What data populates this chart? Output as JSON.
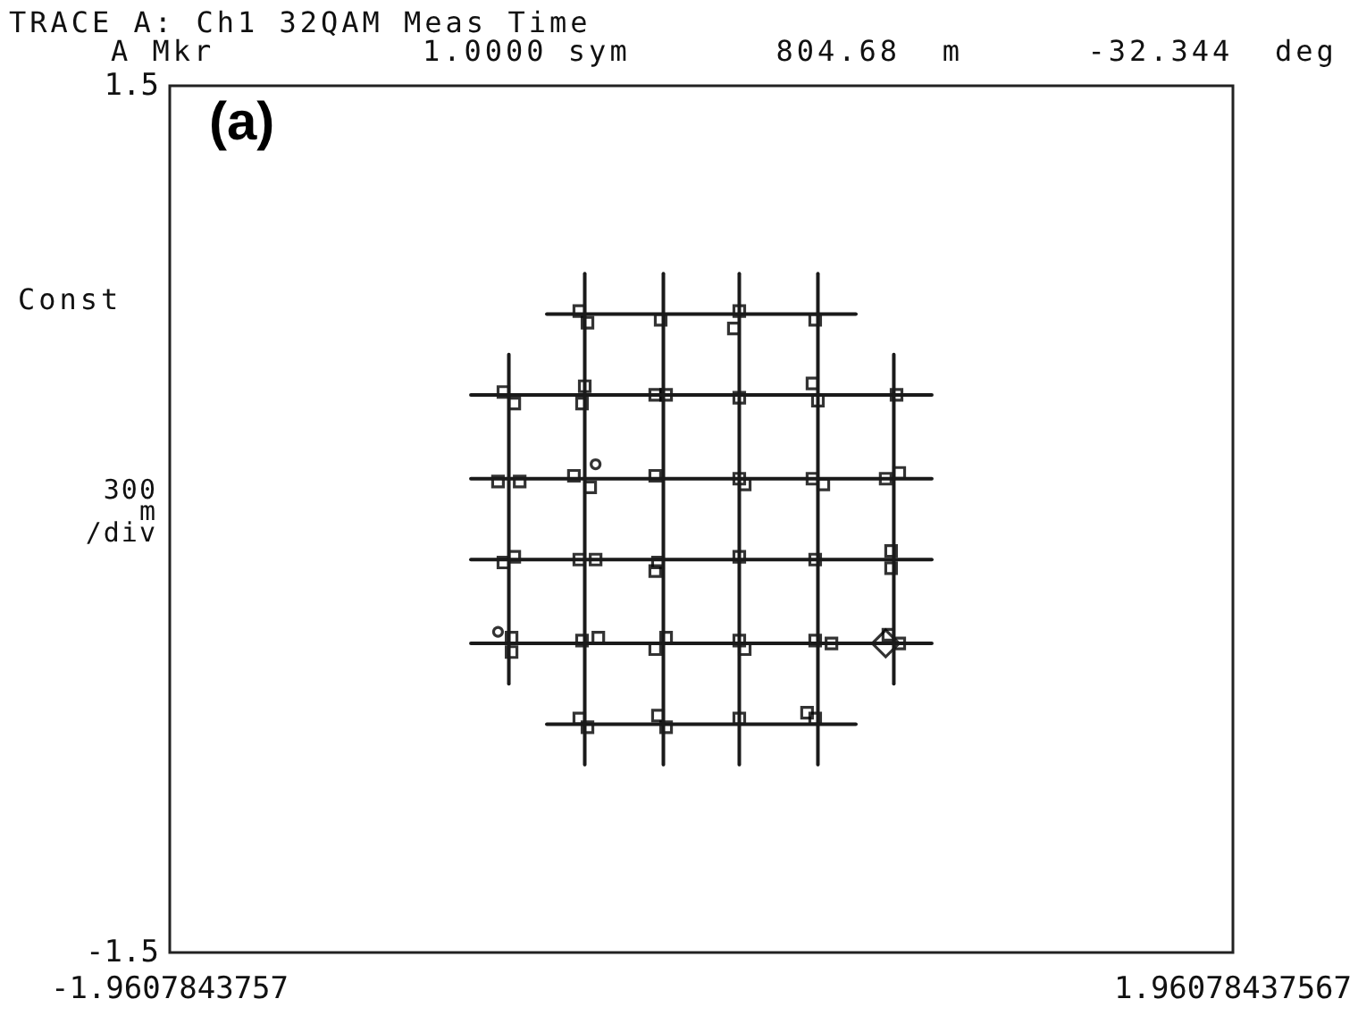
{
  "chart_data": {
    "type": "scatter",
    "title": "TRACE A: Ch1 32QAM Meas Time",
    "subtitle": "A Mkr          1.0000 sym       804.68  m      -32.344  deg",
    "ylabel": "Const",
    "annotations": [
      "(a)",
      "300 m /div"
    ],
    "xlim": [
      -1.9607843757,
      1.96078437567
    ],
    "xticks": [
      -1.9607843757,
      1.96078437567
    ],
    "ylim": [
      -1.5,
      1.5
    ],
    "yticks": [
      -1.5,
      1.5
    ],
    "series": [
      {
        "type": "line",
        "color": "#1a1a1a",
        "x": [
          -0.57,
          0.57
        ],
        "values": [
          0.71,
          0.71
        ]
      },
      {
        "type": "line",
        "color": "#1a1a1a",
        "x": [
          -0.85,
          0.85
        ],
        "values": [
          0.43,
          0.43
        ]
      },
      {
        "type": "line",
        "color": "#1a1a1a",
        "x": [
          -0.85,
          0.85
        ],
        "values": [
          0.14,
          0.14
        ]
      },
      {
        "type": "line",
        "color": "#1a1a1a",
        "x": [
          -0.85,
          0.85
        ],
        "values": [
          -0.14,
          -0.14
        ]
      },
      {
        "type": "line",
        "color": "#1a1a1a",
        "x": [
          -0.85,
          0.85
        ],
        "values": [
          -0.43,
          -0.43
        ]
      },
      {
        "type": "line",
        "color": "#1a1a1a",
        "x": [
          -0.57,
          0.57
        ],
        "values": [
          -0.71,
          -0.71
        ]
      },
      {
        "type": "line",
        "color": "#1a1a1a",
        "x": [
          -0.71,
          -0.71
        ],
        "values": [
          -0.57,
          0.57
        ]
      },
      {
        "type": "line",
        "color": "#1a1a1a",
        "x": [
          -0.43,
          -0.43
        ],
        "values": [
          -0.85,
          0.85
        ]
      },
      {
        "type": "line",
        "color": "#1a1a1a",
        "x": [
          -0.14,
          -0.14
        ],
        "values": [
          -0.85,
          0.85
        ]
      },
      {
        "type": "line",
        "color": "#1a1a1a",
        "x": [
          0.14,
          0.14
        ],
        "values": [
          -0.85,
          0.85
        ]
      },
      {
        "type": "line",
        "color": "#1a1a1a",
        "x": [
          0.43,
          0.43
        ],
        "values": [
          -0.85,
          0.85
        ]
      },
      {
        "type": "line",
        "color": "#1a1a1a",
        "x": [
          0.71,
          0.71
        ],
        "values": [
          -0.57,
          0.57
        ]
      },
      {
        "marker": "square",
        "color": "#000000",
        "x": [
          -0.45,
          -0.42,
          -0.15,
          0.14,
          0.12,
          0.42,
          -0.73,
          -0.69,
          -0.43,
          -0.44,
          -0.17,
          -0.13,
          0.14,
          0.41,
          0.43,
          0.72,
          -0.75,
          -0.67,
          -0.47,
          -0.41,
          -0.17,
          0.14,
          0.16,
          0.41,
          0.45,
          0.68,
          0.73,
          -0.73,
          -0.69,
          -0.45,
          -0.39,
          -0.16,
          -0.17,
          0.14,
          0.42,
          0.7,
          0.7,
          -0.7,
          -0.7,
          -0.44,
          -0.38,
          -0.17,
          -0.13,
          0.14,
          0.16,
          0.42,
          0.48,
          0.69,
          0.73,
          -0.45,
          -0.42,
          -0.16,
          -0.13,
          0.14,
          0.42,
          0.39
        ],
        "values": [
          0.72,
          0.68,
          0.69,
          0.72,
          0.66,
          0.69,
          0.44,
          0.4,
          0.46,
          0.4,
          0.43,
          0.43,
          0.42,
          0.47,
          0.41,
          0.43,
          0.13,
          0.13,
          0.15,
          0.11,
          0.15,
          0.14,
          0.12,
          0.14,
          0.12,
          0.14,
          0.16,
          -0.15,
          -0.13,
          -0.14,
          -0.14,
          -0.15,
          -0.18,
          -0.13,
          -0.14,
          -0.11,
          -0.17,
          -0.41,
          -0.46,
          -0.42,
          -0.41,
          -0.45,
          -0.41,
          -0.42,
          -0.45,
          -0.42,
          -0.43,
          -0.4,
          -0.43,
          -0.69,
          -0.72,
          -0.68,
          -0.72,
          -0.69,
          -0.69,
          -0.67
        ]
      },
      {
        "marker": "circle",
        "color": "#000000",
        "x": [
          -0.39,
          -0.75
        ],
        "values": [
          0.19,
          -0.39
        ]
      },
      {
        "marker": "diamond",
        "color": "#000000",
        "x": [
          0.68
        ],
        "values": [
          -0.43
        ]
      }
    ]
  }
}
